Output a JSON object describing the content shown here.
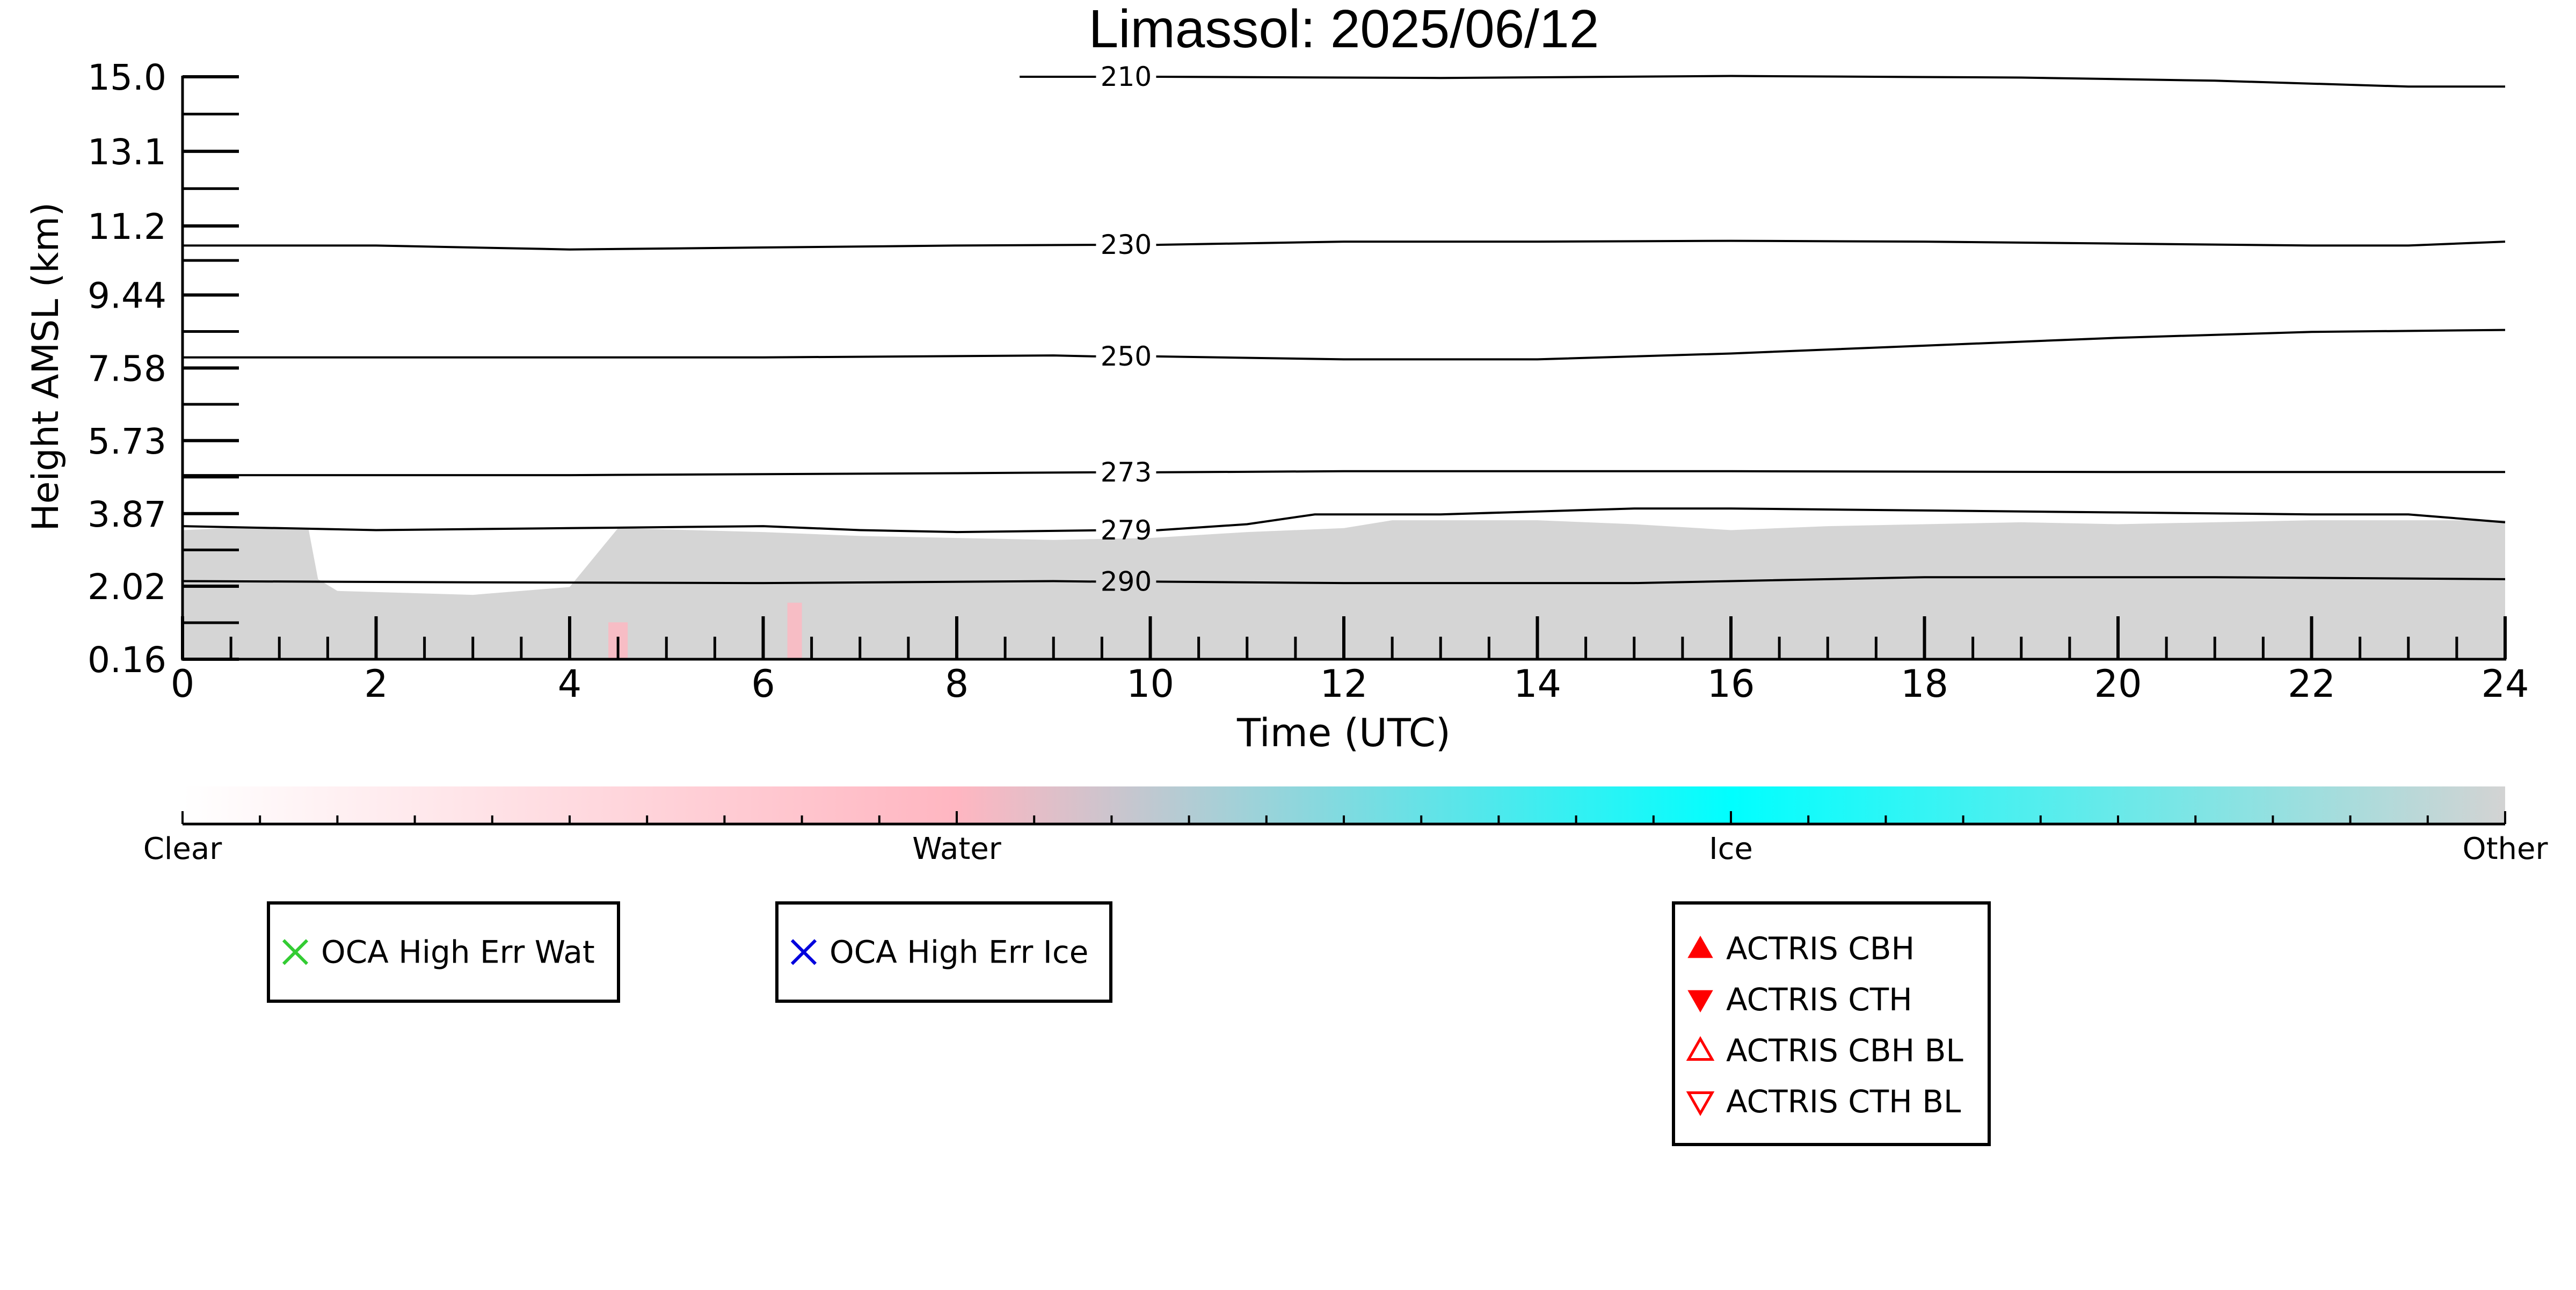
{
  "chart_data": {
    "type": "heatmap",
    "title": "Limassol: 2025/06/12",
    "xlabel": "Time (UTC)",
    "ylabel": "Height AMSL (km)",
    "xlim": [
      0,
      24
    ],
    "ylim": [
      0.16,
      15.0
    ],
    "x_ticks": [
      0,
      2,
      4,
      6,
      8,
      10,
      12,
      14,
      16,
      18,
      20,
      22,
      24
    ],
    "x_tick_labels": [
      "0",
      "2",
      "4",
      "6",
      "8",
      "10",
      "12",
      "14",
      "16",
      "18",
      "20",
      "22",
      "24"
    ],
    "y_ticks": [
      0.16,
      2.02,
      3.87,
      5.73,
      7.58,
      9.44,
      11.2,
      13.1,
      15.0
    ],
    "y_tick_labels": [
      "0.16",
      "2.02",
      "3.87",
      "5.73",
      "7.58",
      "9.44",
      "11.2",
      "13.1",
      "15.0"
    ],
    "grid": false,
    "cloud_layer": {
      "category": "Other",
      "color": "#d3d3d3",
      "top_km": [
        [
          0,
          3.45
        ],
        [
          0.5,
          3.5
        ],
        [
          1.3,
          3.5
        ],
        [
          1.4,
          2.2
        ],
        [
          1.6,
          1.9
        ],
        [
          3.0,
          1.8
        ],
        [
          4.0,
          2.0
        ],
        [
          4.5,
          3.5
        ],
        [
          6.0,
          3.4
        ],
        [
          7.0,
          3.3
        ],
        [
          9.0,
          3.2
        ],
        [
          10.0,
          3.25
        ],
        [
          11.0,
          3.4
        ],
        [
          12.0,
          3.5
        ],
        [
          12.5,
          3.7
        ],
        [
          14.0,
          3.7
        ],
        [
          15.0,
          3.6
        ],
        [
          16.0,
          3.45
        ],
        [
          17.0,
          3.55
        ],
        [
          18.0,
          3.6
        ],
        [
          19.0,
          3.65
        ],
        [
          20.0,
          3.6
        ],
        [
          22.0,
          3.7
        ],
        [
          23.0,
          3.7
        ],
        [
          24.0,
          3.7
        ]
      ],
      "water_patches": [
        {
          "x_start": 4.4,
          "x_end": 4.6,
          "top_km": 1.1
        },
        {
          "x_start": 6.25,
          "x_end": 6.4,
          "top_km": 1.6
        }
      ]
    },
    "temperature_contours": [
      {
        "label": "210",
        "label_x": 9.75,
        "points": [
          [
            8.65,
            15.0
          ],
          [
            10,
            15.0
          ],
          [
            13,
            14.97
          ],
          [
            16,
            15.02
          ],
          [
            19,
            14.98
          ],
          [
            21,
            14.9
          ],
          [
            23,
            14.75
          ],
          [
            24,
            14.75
          ]
        ]
      },
      {
        "label": "230",
        "label_x": 9.75,
        "points": [
          [
            0,
            10.7
          ],
          [
            2,
            10.7
          ],
          [
            4,
            10.6
          ],
          [
            6,
            10.65
          ],
          [
            8,
            10.7
          ],
          [
            10,
            10.72
          ],
          [
            12,
            10.8
          ],
          [
            14,
            10.8
          ],
          [
            16,
            10.82
          ],
          [
            18,
            10.8
          ],
          [
            20,
            10.75
          ],
          [
            22,
            10.7
          ],
          [
            23,
            10.7
          ],
          [
            24,
            10.8
          ]
        ]
      },
      {
        "label": "250",
        "label_x": 9.75,
        "points": [
          [
            0,
            7.85
          ],
          [
            3,
            7.85
          ],
          [
            6,
            7.85
          ],
          [
            9,
            7.9
          ],
          [
            12,
            7.8
          ],
          [
            14,
            7.8
          ],
          [
            16,
            7.95
          ],
          [
            18,
            8.15
          ],
          [
            20,
            8.35
          ],
          [
            22,
            8.5
          ],
          [
            24,
            8.55
          ]
        ]
      },
      {
        "label": "273",
        "label_x": 9.75,
        "points": [
          [
            0,
            4.85
          ],
          [
            4,
            4.85
          ],
          [
            8,
            4.9
          ],
          [
            12,
            4.95
          ],
          [
            16,
            4.95
          ],
          [
            20,
            4.93
          ],
          [
            24,
            4.93
          ]
        ]
      },
      {
        "label": "279",
        "label_x": 9.75,
        "points": [
          [
            0,
            3.55
          ],
          [
            2,
            3.45
          ],
          [
            4,
            3.5
          ],
          [
            6,
            3.55
          ],
          [
            7,
            3.45
          ],
          [
            8,
            3.4
          ],
          [
            10,
            3.45
          ],
          [
            11,
            3.6
          ],
          [
            11.7,
            3.85
          ],
          [
            13,
            3.85
          ],
          [
            15,
            4.0
          ],
          [
            16,
            4.0
          ],
          [
            18,
            3.95
          ],
          [
            20,
            3.9
          ],
          [
            22,
            3.85
          ],
          [
            23,
            3.85
          ],
          [
            24,
            3.65
          ]
        ]
      },
      {
        "label": "290",
        "label_x": 9.75,
        "points": [
          [
            0,
            2.15
          ],
          [
            3,
            2.12
          ],
          [
            6,
            2.1
          ],
          [
            9,
            2.15
          ],
          [
            12,
            2.1
          ],
          [
            15,
            2.1
          ],
          [
            16,
            2.15
          ],
          [
            18,
            2.25
          ],
          [
            21,
            2.25
          ],
          [
            24,
            2.2
          ]
        ]
      }
    ],
    "colorbar": {
      "categories": [
        "Clear",
        "Water",
        "Ice",
        "Other"
      ],
      "colors": [
        "#ffffff",
        "#ffb6c1",
        "#00ffff",
        "#d3d3d3"
      ]
    },
    "legends": [
      {
        "entries": [
          {
            "label": "OCA High Err Wat",
            "marker": "x-icon",
            "color": "#33cc33"
          }
        ]
      },
      {
        "entries": [
          {
            "label": "OCA High Err Ice",
            "marker": "x-icon",
            "color": "#0000dd"
          }
        ]
      },
      {
        "entries": [
          {
            "label": "ACTRIS CBH",
            "marker": "triangle-up-filled-icon",
            "color": "#ff0000"
          },
          {
            "label": "ACTRIS CTH",
            "marker": "triangle-down-filled-icon",
            "color": "#ff0000"
          },
          {
            "label": "ACTRIS CBH BL",
            "marker": "triangle-up-open-icon",
            "color": "#ff0000"
          },
          {
            "label": "ACTRIS CTH BL",
            "marker": "triangle-down-open-icon",
            "color": "#ff0000"
          }
        ]
      }
    ]
  }
}
